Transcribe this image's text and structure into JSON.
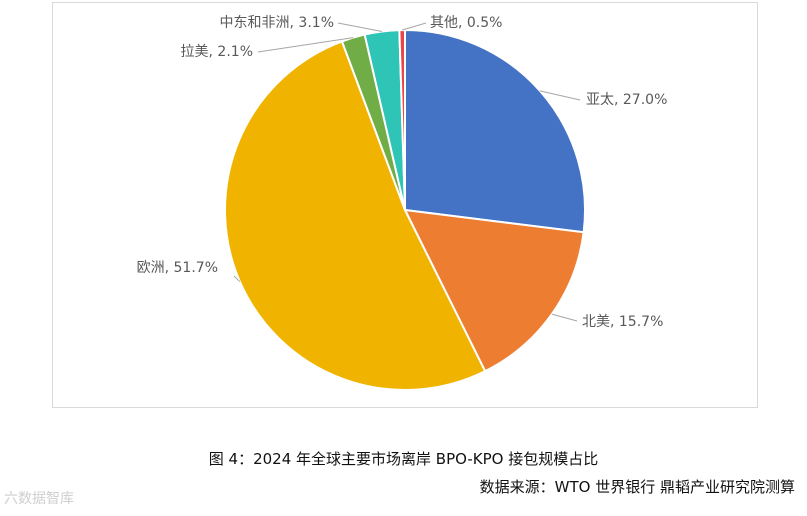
{
  "chart_data": {
    "type": "pie",
    "slices": [
      {
        "label": "亚太",
        "value": 27.0,
        "display": "亚太, 27.0%",
        "color": "#4472c4"
      },
      {
        "label": "北美",
        "value": 15.7,
        "display": "北美, 15.7%",
        "color": "#ed7d31"
      },
      {
        "label": "欧洲",
        "value": 51.7,
        "display": "欧洲, 51.7%",
        "color": "#f0b400"
      },
      {
        "label": "拉美",
        "value": 2.1,
        "display": "拉美, 2.1%",
        "color": "#70ad47"
      },
      {
        "label": "中东和非洲",
        "value": 3.1,
        "display": "中东和非洲, 3.1%",
        "color": "#2ec4b6"
      },
      {
        "label": "其他",
        "value": 0.5,
        "display": "其他, 0.5%",
        "color": "#e8454d"
      }
    ],
    "start": "12 o'clock",
    "direction": "clockwise"
  },
  "caption": {
    "title": "图 4：2024 年全球主要市场离岸 BPO-KPO 接包规模占比",
    "source": "数据来源：WTO 世界银行 鼎韬产业研究院测算"
  },
  "watermark": "六数据智库"
}
